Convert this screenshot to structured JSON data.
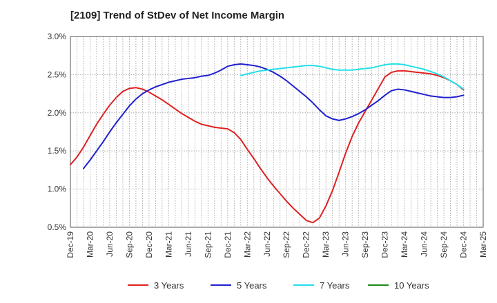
{
  "chart_data": {
    "type": "line",
    "title": "[2109]  Trend of StDev of Net Income Margin",
    "xlabel": "",
    "ylabel": "",
    "y_unit": "%",
    "ylim": [
      0.5,
      3.0
    ],
    "yticks": [
      0.5,
      1.0,
      1.5,
      2.0,
      2.5,
      3.0
    ],
    "ytick_labels": [
      "0.5%",
      "1.0%",
      "1.5%",
      "2.0%",
      "2.5%",
      "3.0%"
    ],
    "xticks": [
      "Dec-19",
      "Mar-20",
      "Jun-20",
      "Sep-20",
      "Dec-20",
      "Mar-21",
      "Jun-21",
      "Sep-21",
      "Dec-21",
      "Mar-22",
      "Jun-22",
      "Sep-22",
      "Dec-22",
      "Mar-23",
      "Jun-23",
      "Sep-23",
      "Dec-23",
      "Mar-24",
      "Jun-24",
      "Sep-24",
      "Dec-24",
      "Mar-25"
    ],
    "grid": true,
    "legend_position": "bottom",
    "series": [
      {
        "name": "3 Years",
        "color": "#e02020",
        "points": [
          [
            "Dec-19",
            1.32
          ],
          [
            "Jan-20",
            1.42
          ],
          [
            "Feb-20",
            1.55
          ],
          [
            "Mar-20",
            1.7
          ],
          [
            "Apr-20",
            1.85
          ],
          [
            "May-20",
            1.98
          ],
          [
            "Jun-20",
            2.1
          ],
          [
            "Jul-20",
            2.2
          ],
          [
            "Aug-20",
            2.28
          ],
          [
            "Sep-20",
            2.32
          ],
          [
            "Oct-20",
            2.33
          ],
          [
            "Nov-20",
            2.31
          ],
          [
            "Dec-20",
            2.27
          ],
          [
            "Jan-21",
            2.22
          ],
          [
            "Feb-21",
            2.17
          ],
          [
            "Mar-21",
            2.11
          ],
          [
            "Apr-21",
            2.05
          ],
          [
            "May-21",
            1.99
          ],
          [
            "Jun-21",
            1.94
          ],
          [
            "Jul-21",
            1.89
          ],
          [
            "Aug-21",
            1.85
          ],
          [
            "Sep-21",
            1.83
          ],
          [
            "Oct-21",
            1.81
          ],
          [
            "Nov-21",
            1.8
          ],
          [
            "Dec-21",
            1.79
          ],
          [
            "Jan-22",
            1.74
          ],
          [
            "Feb-22",
            1.65
          ],
          [
            "Mar-22",
            1.52
          ],
          [
            "Apr-22",
            1.4
          ],
          [
            "May-22",
            1.27
          ],
          [
            "Jun-22",
            1.15
          ],
          [
            "Jul-22",
            1.04
          ],
          [
            "Aug-22",
            0.94
          ],
          [
            "Sep-22",
            0.84
          ],
          [
            "Oct-22",
            0.75
          ],
          [
            "Nov-22",
            0.67
          ],
          [
            "Dec-22",
            0.59
          ],
          [
            "Jan-23",
            0.56
          ],
          [
            "Feb-23",
            0.62
          ],
          [
            "Mar-23",
            0.78
          ],
          [
            "Apr-23",
            0.98
          ],
          [
            "May-23",
            1.22
          ],
          [
            "Jun-23",
            1.47
          ],
          [
            "Jul-23",
            1.69
          ],
          [
            "Aug-23",
            1.87
          ],
          [
            "Sep-23",
            2.02
          ],
          [
            "Oct-23",
            2.17
          ],
          [
            "Nov-23",
            2.32
          ],
          [
            "Dec-23",
            2.47
          ],
          [
            "Jan-24",
            2.53
          ],
          [
            "Feb-24",
            2.55
          ],
          [
            "Mar-24",
            2.55
          ],
          [
            "Apr-24",
            2.54
          ],
          [
            "May-24",
            2.53
          ],
          [
            "Jun-24",
            2.52
          ],
          [
            "Jul-24",
            2.51
          ],
          [
            "Aug-24",
            2.49
          ],
          [
            "Sep-24",
            2.46
          ],
          [
            "Oct-24",
            2.42
          ],
          [
            "Nov-24",
            2.37
          ],
          [
            "Dec-24",
            2.3
          ]
        ]
      },
      {
        "name": "5 Years",
        "color": "#1f1fd0",
        "points": [
          [
            "Feb-20",
            1.27
          ],
          [
            "Mar-20",
            1.38
          ],
          [
            "Apr-20",
            1.5
          ],
          [
            "May-20",
            1.62
          ],
          [
            "Jun-20",
            1.75
          ],
          [
            "Jul-20",
            1.87
          ],
          [
            "Aug-20",
            1.98
          ],
          [
            "Sep-20",
            2.09
          ],
          [
            "Oct-20",
            2.18
          ],
          [
            "Nov-20",
            2.25
          ],
          [
            "Dec-20",
            2.3
          ],
          [
            "Jan-21",
            2.34
          ],
          [
            "Feb-21",
            2.37
          ],
          [
            "Mar-21",
            2.4
          ],
          [
            "Apr-21",
            2.42
          ],
          [
            "May-21",
            2.44
          ],
          [
            "Jun-21",
            2.45
          ],
          [
            "Jul-21",
            2.46
          ],
          [
            "Aug-21",
            2.48
          ],
          [
            "Sep-21",
            2.49
          ],
          [
            "Oct-21",
            2.52
          ],
          [
            "Nov-21",
            2.56
          ],
          [
            "Dec-21",
            2.61
          ],
          [
            "Jan-22",
            2.63
          ],
          [
            "Feb-22",
            2.64
          ],
          [
            "Mar-22",
            2.63
          ],
          [
            "Apr-22",
            2.62
          ],
          [
            "May-22",
            2.6
          ],
          [
            "Jun-22",
            2.57
          ],
          [
            "Jul-22",
            2.53
          ],
          [
            "Aug-22",
            2.48
          ],
          [
            "Sep-22",
            2.42
          ],
          [
            "Oct-22",
            2.35
          ],
          [
            "Nov-22",
            2.28
          ],
          [
            "Dec-22",
            2.21
          ],
          [
            "Jan-23",
            2.13
          ],
          [
            "Feb-23",
            2.04
          ],
          [
            "Mar-23",
            1.96
          ],
          [
            "Apr-23",
            1.92
          ],
          [
            "May-23",
            1.9
          ],
          [
            "Jun-23",
            1.92
          ],
          [
            "Jul-23",
            1.95
          ],
          [
            "Aug-23",
            1.99
          ],
          [
            "Sep-23",
            2.04
          ],
          [
            "Oct-23",
            2.1
          ],
          [
            "Nov-23",
            2.16
          ],
          [
            "Dec-23",
            2.23
          ],
          [
            "Jan-24",
            2.29
          ],
          [
            "Feb-24",
            2.31
          ],
          [
            "Mar-24",
            2.3
          ],
          [
            "Apr-24",
            2.28
          ],
          [
            "May-24",
            2.26
          ],
          [
            "Jun-24",
            2.24
          ],
          [
            "Jul-24",
            2.22
          ],
          [
            "Aug-24",
            2.21
          ],
          [
            "Sep-24",
            2.2
          ],
          [
            "Oct-24",
            2.2
          ],
          [
            "Nov-24",
            2.21
          ],
          [
            "Dec-24",
            2.23
          ]
        ]
      },
      {
        "name": "7 Years",
        "color": "#20e0e8",
        "points": [
          [
            "Feb-22",
            2.49
          ],
          [
            "Mar-22",
            2.51
          ],
          [
            "Apr-22",
            2.53
          ],
          [
            "May-22",
            2.55
          ],
          [
            "Jun-22",
            2.56
          ],
          [
            "Jul-22",
            2.57
          ],
          [
            "Aug-22",
            2.58
          ],
          [
            "Sep-22",
            2.59
          ],
          [
            "Oct-22",
            2.6
          ],
          [
            "Nov-22",
            2.61
          ],
          [
            "Dec-22",
            2.62
          ],
          [
            "Jan-23",
            2.62
          ],
          [
            "Feb-23",
            2.61
          ],
          [
            "Mar-23",
            2.59
          ],
          [
            "Apr-23",
            2.57
          ],
          [
            "May-23",
            2.56
          ],
          [
            "Jun-23",
            2.56
          ],
          [
            "Jul-23",
            2.56
          ],
          [
            "Aug-23",
            2.57
          ],
          [
            "Sep-23",
            2.58
          ],
          [
            "Oct-23",
            2.59
          ],
          [
            "Nov-23",
            2.61
          ],
          [
            "Dec-23",
            2.63
          ],
          [
            "Jan-24",
            2.64
          ],
          [
            "Feb-24",
            2.64
          ],
          [
            "Mar-24",
            2.63
          ],
          [
            "Apr-24",
            2.61
          ],
          [
            "May-24",
            2.59
          ],
          [
            "Jun-24",
            2.57
          ],
          [
            "Jul-24",
            2.54
          ],
          [
            "Aug-24",
            2.51
          ],
          [
            "Sep-24",
            2.47
          ],
          [
            "Oct-24",
            2.42
          ],
          [
            "Nov-24",
            2.37
          ],
          [
            "Dec-24",
            2.31
          ]
        ]
      },
      {
        "name": "10 Years",
        "color": "#1a8a1a",
        "points": []
      }
    ]
  }
}
